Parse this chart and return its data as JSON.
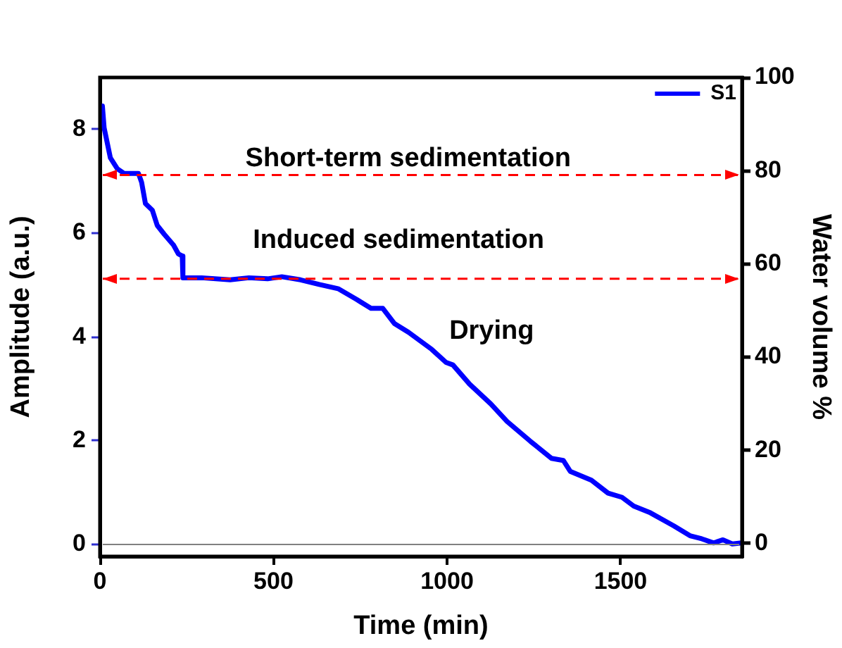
{
  "chart_data": {
    "type": "line",
    "xlabel": "Time (min)",
    "ylabel": "Amplitude (a.u.)",
    "y2label": "Water volume %",
    "xlim": [
      0,
      1850
    ],
    "xticks": [
      0,
      500,
      1000,
      1500
    ],
    "ylim": [
      -0.23,
      9.0
    ],
    "yticks": [
      0,
      2,
      4,
      6,
      8
    ],
    "y2lim": [
      -2.8,
      100
    ],
    "y2ticks": [
      0,
      20,
      40,
      60,
      80,
      100
    ],
    "grid": false,
    "legend": "top right",
    "marker": "none",
    "line_style": "solid",
    "series": [
      {
        "name": "S1",
        "color": "#0000ff",
        "x": [
          7,
          12,
          30,
          50,
          70,
          111,
          120,
          131,
          151,
          165,
          185,
          212,
          226,
          237,
          239,
          293,
          375,
          429,
          483,
          524,
          578,
          632,
          686,
          740,
          781,
          815,
          848,
          889,
          956,
          997,
          1017,
          1065,
          1126,
          1173,
          1240,
          1301,
          1335,
          1355,
          1416,
          1464,
          1504,
          1538,
          1586,
          1653,
          1700,
          1734,
          1768,
          1795,
          1822,
          1849
        ],
        "values": [
          8.45,
          8.03,
          7.45,
          7.24,
          7.15,
          7.15,
          6.98,
          6.57,
          6.44,
          6.15,
          5.98,
          5.77,
          5.6,
          5.56,
          5.14,
          5.14,
          5.1,
          5.14,
          5.12,
          5.16,
          5.1,
          5.01,
          4.93,
          4.72,
          4.55,
          4.55,
          4.26,
          4.09,
          3.76,
          3.51,
          3.46,
          3.09,
          2.71,
          2.37,
          1.99,
          1.66,
          1.62,
          1.41,
          1.24,
          0.99,
          0.91,
          0.74,
          0.61,
          0.36,
          0.17,
          0.11,
          0.03,
          0.09,
          0.01,
          0.03
        ]
      }
    ],
    "ref_lines": [
      {
        "axis": "y",
        "value": 0,
        "color": "#808080",
        "line_style": "solid"
      },
      {
        "axis": "y",
        "value": 7.12,
        "color": "#ff0000",
        "line_style": "dashed"
      },
      {
        "axis": "y",
        "value": 5.12,
        "color": "#ff0000",
        "line_style": "dashed"
      }
    ],
    "annotations": [
      "Short-term sedimentation",
      "Induced sedimentation",
      "Drying"
    ]
  }
}
